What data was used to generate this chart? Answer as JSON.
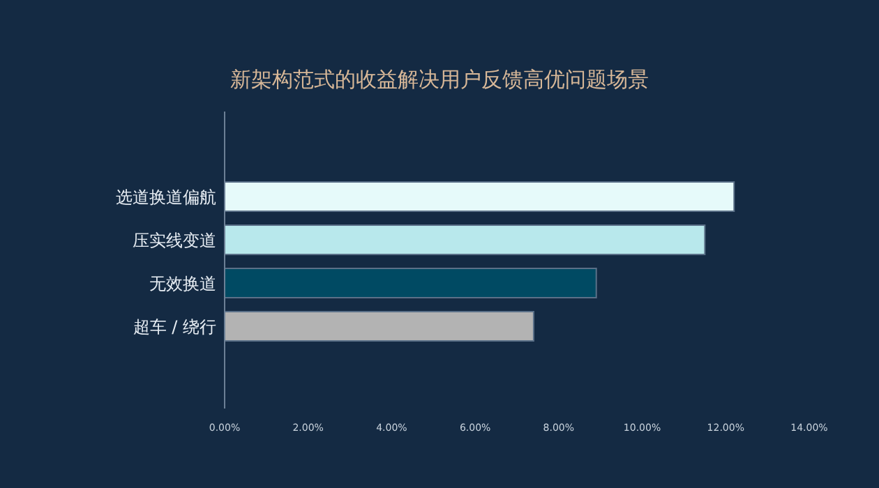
{
  "chart_data": {
    "type": "bar",
    "orientation": "horizontal",
    "title": "新架构范式的收益解决用户反馈高优问题场景",
    "categories": [
      "选道换道偏航",
      "压实线变道",
      "无效换道",
      "超车 / 绕行"
    ],
    "values": [
      12.2,
      11.5,
      8.9,
      7.4
    ],
    "colors": [
      "#e6fafa",
      "#b8e8ec",
      "#004a63",
      "#b3b3b3"
    ],
    "xlim": [
      0,
      14
    ],
    "xticks": [
      {
        "value": 0,
        "label": "0.00%"
      },
      {
        "value": 2,
        "label": "2.00%"
      },
      {
        "value": 4,
        "label": "4.00%"
      },
      {
        "value": 6,
        "label": "6.00%"
      },
      {
        "value": 8,
        "label": "8.00%"
      },
      {
        "value": 10,
        "label": "10.00%"
      },
      {
        "value": 12,
        "label": "12.00%"
      },
      {
        "value": 14,
        "label": "14.00%"
      }
    ],
    "grid": false
  }
}
